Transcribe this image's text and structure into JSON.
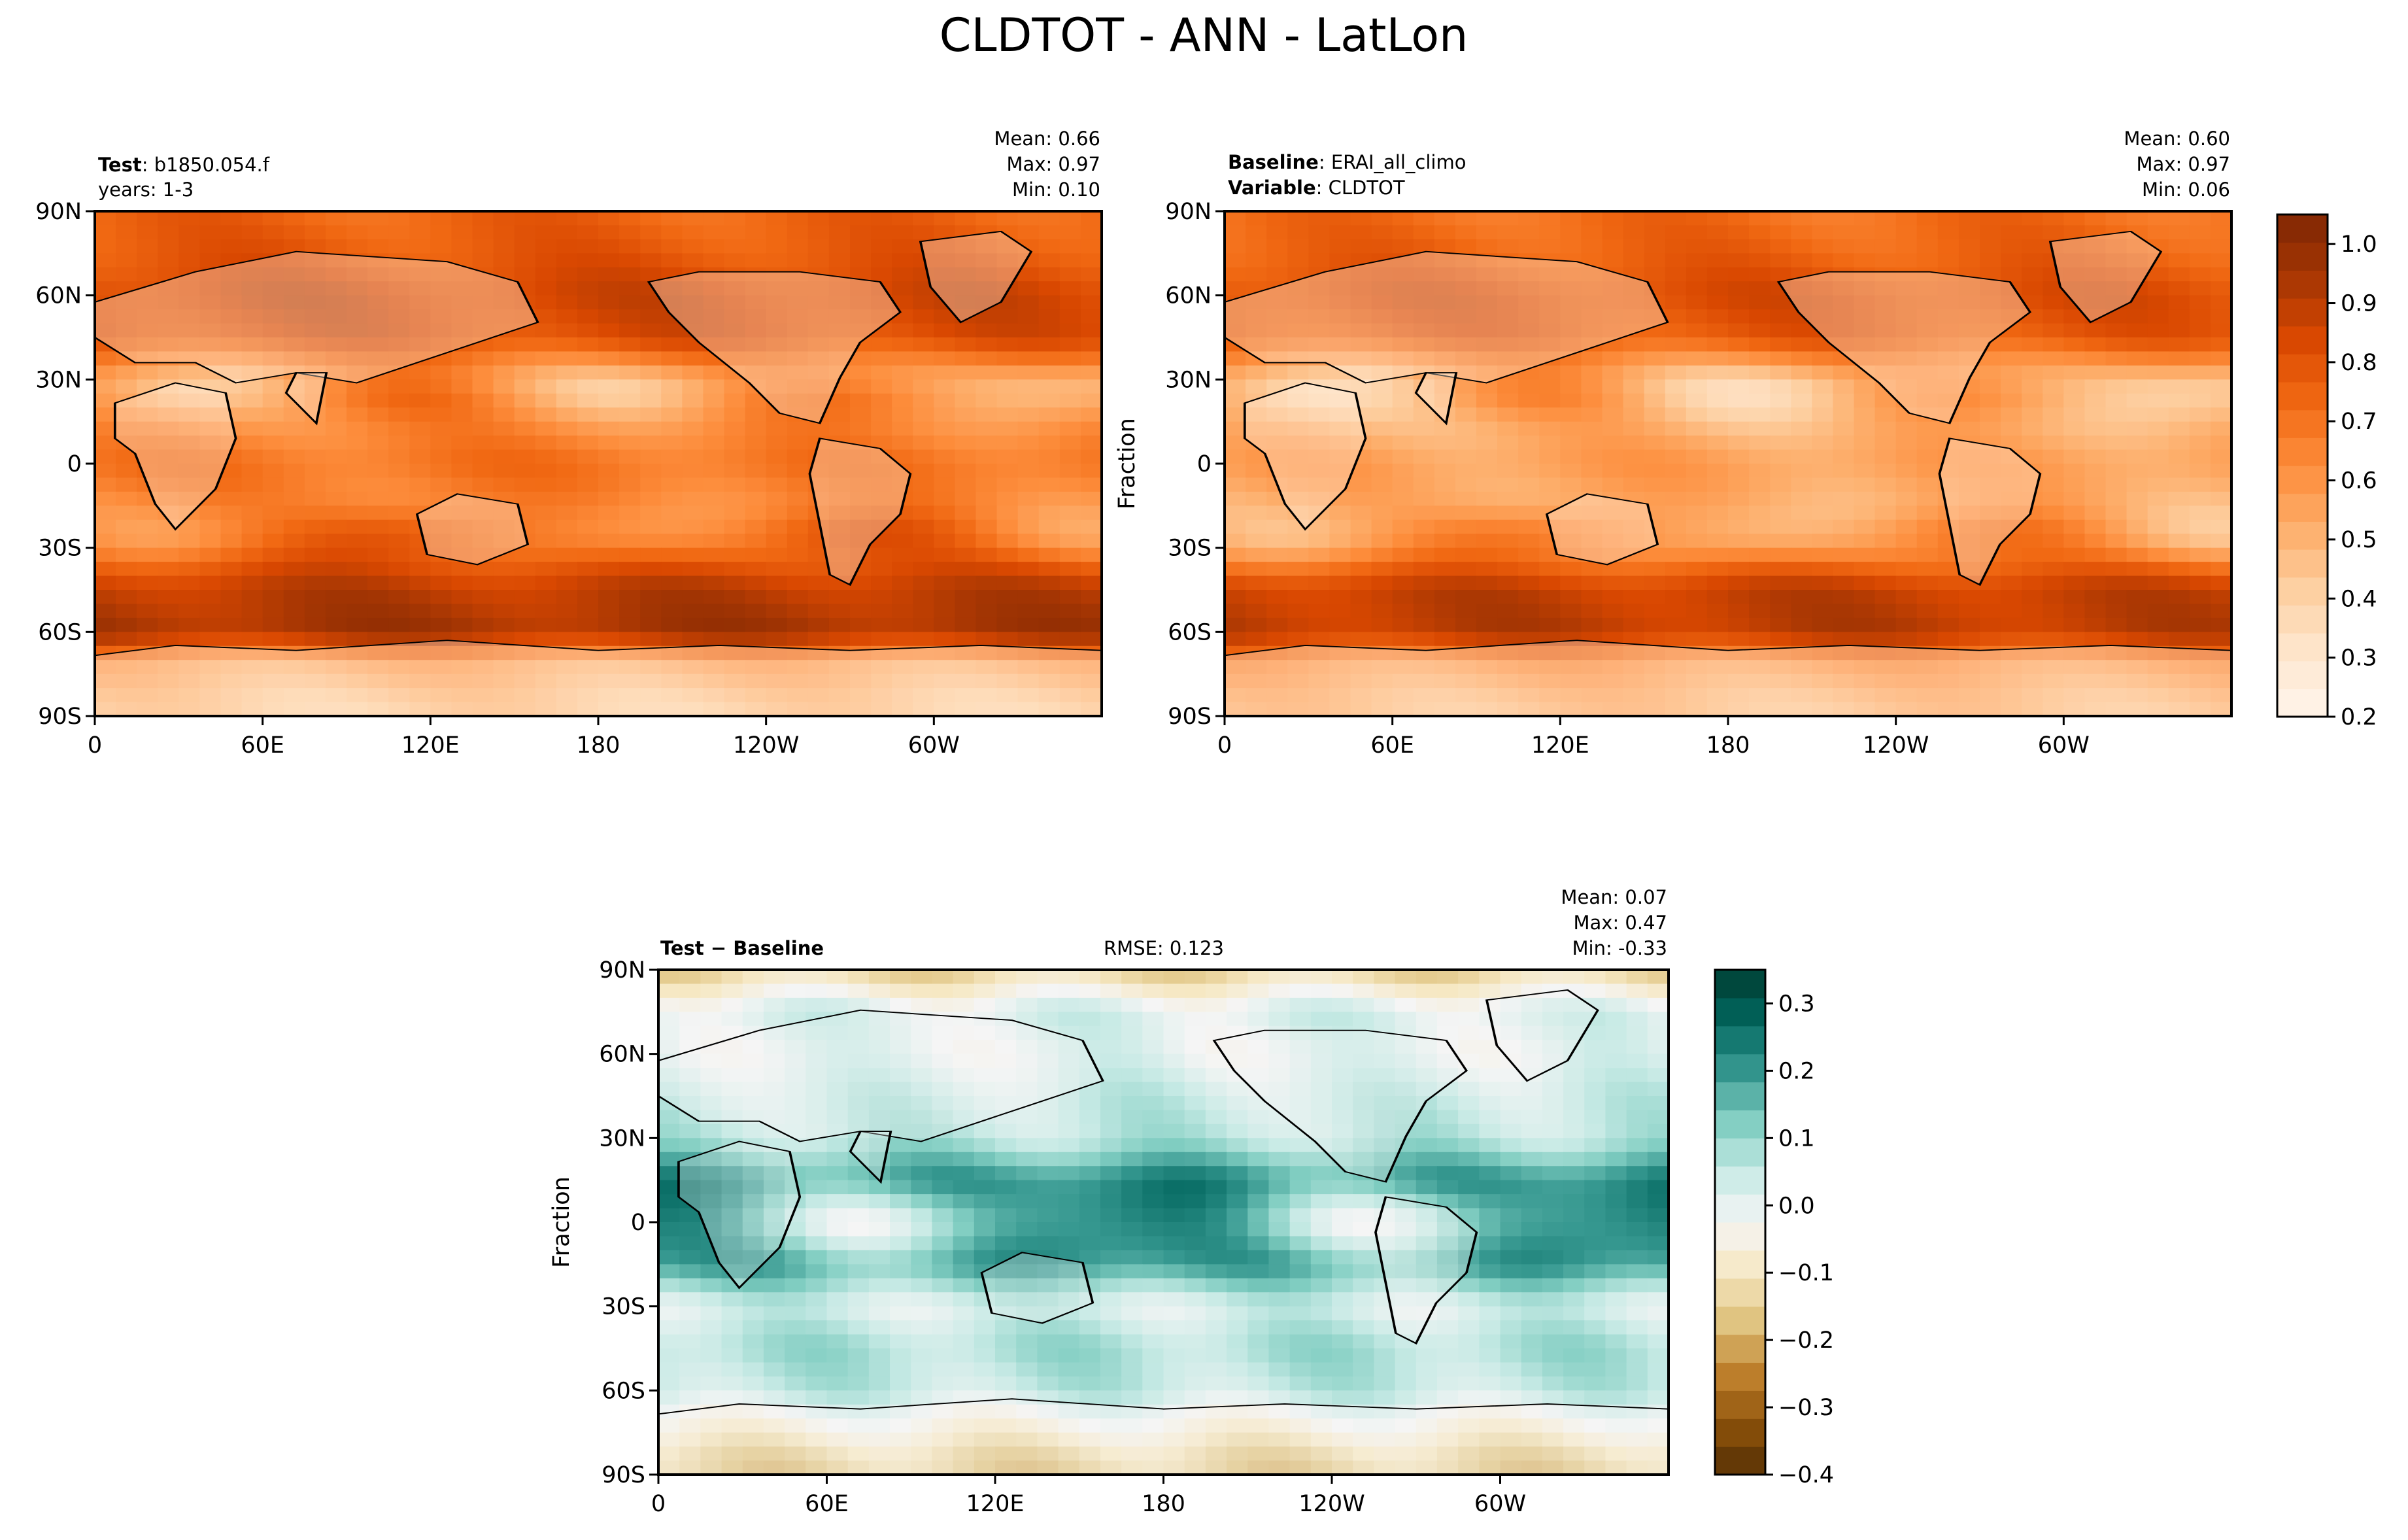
{
  "figure": {
    "title": "CLDTOT - ANN - LatLon"
  },
  "colors": {
    "test_ramp": [
      "#fff5eb",
      "#fee6ce",
      "#fdd0a2",
      "#fdae6b",
      "#fd8d3c",
      "#f16913",
      "#d94801",
      "#a63603",
      "#7f2704"
    ],
    "diff_ramp": [
      "#543005",
      "#8c510a",
      "#bf812d",
      "#dfc27d",
      "#f6e8c3",
      "#f5f5f5",
      "#c7eae5",
      "#80cdc1",
      "#35978f",
      "#01665e",
      "#003c30"
    ],
    "coast": "#000000"
  },
  "chart_data": [
    {
      "id": "test",
      "type": "heatmap",
      "map_type": "lat-lon contour map",
      "label_key": "Test",
      "label_value": "b1850.054.f",
      "sub_label": "years: 1-3",
      "stats": {
        "mean": "Mean:  0.66",
        "max": "Max:  0.97",
        "min": "Min:  0.10"
      },
      "ylabel": "",
      "x_ticks": [
        "0",
        "60E",
        "120E",
        "180",
        "120W",
        "60W"
      ],
      "y_ticks": [
        "90N",
        "60N",
        "30N",
        "0",
        "30S",
        "60S",
        "90S"
      ],
      "xlim": [
        0,
        360
      ],
      "ylim": [
        -90,
        90
      ],
      "zones": [
        {
          "lat": -85,
          "v": 0.45
        },
        {
          "lat": -72,
          "v": 0.55
        },
        {
          "lat": -60,
          "v": 0.95
        },
        {
          "lat": -45,
          "v": 0.9
        },
        {
          "lat": -30,
          "v": 0.72
        },
        {
          "lat": -15,
          "v": 0.65
        },
        {
          "lat": 0,
          "v": 0.7
        },
        {
          "lat": 15,
          "v": 0.62
        },
        {
          "lat": 30,
          "v": 0.55
        },
        {
          "lat": 45,
          "v": 0.82
        },
        {
          "lat": 60,
          "v": 0.85
        },
        {
          "lat": 75,
          "v": 0.78
        },
        {
          "lat": 88,
          "v": 0.75
        }
      ]
    },
    {
      "id": "baseline",
      "type": "heatmap",
      "map_type": "lat-lon contour map",
      "label_key": "Baseline",
      "label_value": "ERAI_all_climo",
      "label_key2": "Variable",
      "label_value2": "CLDTOT",
      "stats": {
        "mean": "Mean:  0.60",
        "max": "Max:  0.97",
        "min": "Min:  0.06"
      },
      "ylabel": "Fraction",
      "x_ticks": [
        "0",
        "60E",
        "120E",
        "180",
        "120W",
        "60W"
      ],
      "y_ticks": [
        "90N",
        "60N",
        "30N",
        "0",
        "30S",
        "60S",
        "90S"
      ],
      "xlim": [
        0,
        360
      ],
      "ylim": [
        -90,
        90
      ],
      "zones": [
        {
          "lat": -85,
          "v": 0.5
        },
        {
          "lat": -72,
          "v": 0.6
        },
        {
          "lat": -60,
          "v": 0.9
        },
        {
          "lat": -45,
          "v": 0.88
        },
        {
          "lat": -30,
          "v": 0.62
        },
        {
          "lat": -15,
          "v": 0.55
        },
        {
          "lat": 0,
          "v": 0.6
        },
        {
          "lat": 15,
          "v": 0.52
        },
        {
          "lat": 30,
          "v": 0.5
        },
        {
          "lat": 45,
          "v": 0.78
        },
        {
          "lat": 60,
          "v": 0.82
        },
        {
          "lat": 75,
          "v": 0.75
        },
        {
          "lat": 88,
          "v": 0.72
        }
      ],
      "colorbar": {
        "ticks": [
          "1.0",
          "0.9",
          "0.8",
          "0.7",
          "0.6",
          "0.5",
          "0.4",
          "0.3",
          "0.2"
        ],
        "range": [
          0.2,
          1.05
        ]
      }
    },
    {
      "id": "diff",
      "type": "heatmap",
      "map_type": "lat-lon contour map",
      "label_key": "Test − Baseline",
      "rmse": "RMSE: 0.123",
      "stats": {
        "mean": "Mean:  0.07",
        "max": "Max:  0.47",
        "min": "Min: -0.33"
      },
      "ylabel": "Fraction",
      "x_ticks": [
        "0",
        "60E",
        "120E",
        "180",
        "120W",
        "60W"
      ],
      "y_ticks": [
        "90N",
        "60N",
        "30N",
        "0",
        "30S",
        "60S",
        "90S"
      ],
      "xlim": [
        0,
        360
      ],
      "ylim": [
        -90,
        90
      ],
      "zones": [
        {
          "lat": -85,
          "v": -0.15
        },
        {
          "lat": -72,
          "v": -0.05
        },
        {
          "lat": -60,
          "v": 0.05
        },
        {
          "lat": -45,
          "v": 0.08
        },
        {
          "lat": -30,
          "v": 0.02
        },
        {
          "lat": -15,
          "v": 0.18
        },
        {
          "lat": 0,
          "v": 0.12
        },
        {
          "lat": 15,
          "v": 0.2
        },
        {
          "lat": 30,
          "v": 0.06
        },
        {
          "lat": 45,
          "v": 0.04
        },
        {
          "lat": 60,
          "v": 0.0
        },
        {
          "lat": 75,
          "v": 0.02
        },
        {
          "lat": 88,
          "v": -0.12
        }
      ],
      "colorbar": {
        "ticks": [
          "0.3",
          "0.2",
          "0.1",
          "0.0",
          "−0.1",
          "−0.2",
          "−0.3",
          "−0.4"
        ],
        "range": [
          -0.4,
          0.35
        ]
      }
    }
  ]
}
